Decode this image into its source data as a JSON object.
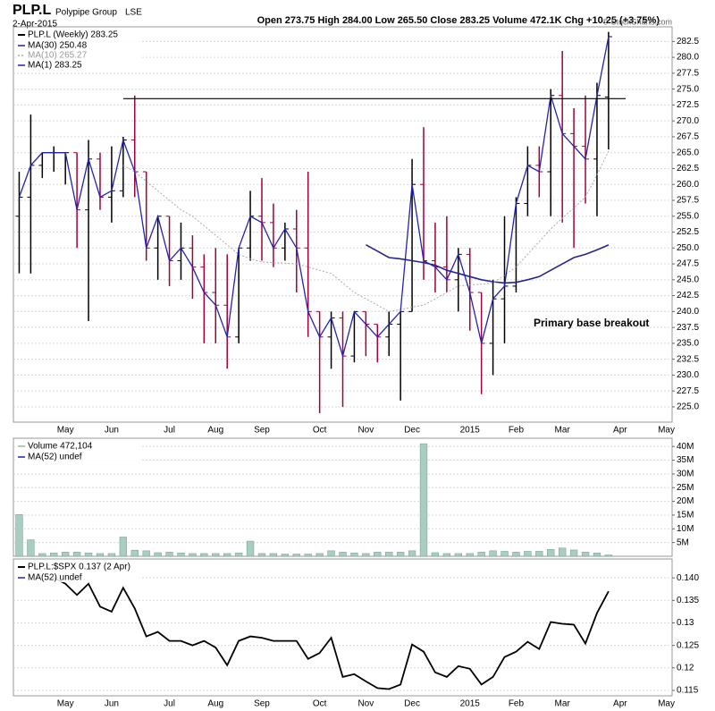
{
  "header": {
    "symbol": "PLP.L",
    "name": "Polypipe Group",
    "exchange": "LSE",
    "date": "2-Apr-2015",
    "quote": "Open 273.75  High 284.00  Low 265.50  Close 283.25  Volume 472.1K  Chg +10.25 (+3.75%)",
    "copyright": "© StockCharts.com"
  },
  "chart_data": [
    {
      "type": "ohlc",
      "title": "PLP.L (Weekly) 283.25",
      "categories": [
        null,
        null,
        null,
        null,
        "May",
        null,
        null,
        null,
        "Jun",
        null,
        null,
        null,
        null,
        "Jul",
        null,
        null,
        null,
        "Aug",
        null,
        null,
        null,
        "Sep",
        null,
        null,
        null,
        null,
        "Oct",
        null,
        null,
        null,
        "Nov",
        null,
        null,
        null,
        "Dec",
        null,
        null,
        null,
        null,
        "2015",
        null,
        null,
        null,
        "Feb",
        null,
        null,
        null,
        "Mar",
        null,
        null,
        null,
        null,
        "Apr",
        null,
        null,
        null,
        "May"
      ],
      "open": [
        255,
        258,
        263,
        265,
        265,
        265,
        256,
        264,
        258,
        259,
        267,
        262,
        250,
        255,
        248,
        250,
        247,
        243,
        241,
        236,
        250,
        255,
        254,
        250,
        253,
        250,
        240,
        236,
        239,
        233,
        240,
        238,
        236,
        238,
        240,
        260,
        248,
        247,
        245,
        249,
        243,
        235,
        242,
        244,
        257,
        263,
        262,
        274,
        268,
        266,
        264,
        273.75,
        null,
        null,
        null,
        null,
        null
      ],
      "high": [
        262,
        271,
        265,
        266,
        265,
        265,
        267,
        265,
        266,
        267.5,
        274,
        262,
        255,
        255,
        254,
        252,
        249,
        250,
        249,
        250,
        259,
        261,
        257,
        254,
        256,
        262,
        240,
        240,
        240,
        240,
        240,
        238,
        240,
        240,
        264,
        269,
        254,
        255,
        250,
        250,
        243,
        245,
        255,
        258,
        266,
        266,
        275,
        281,
        272,
        274,
        276,
        284,
        null,
        null,
        null,
        null,
        null
      ],
      "low": [
        246,
        246,
        261,
        262,
        260,
        250,
        238.5,
        256,
        254,
        258,
        258,
        248,
        245,
        244,
        245,
        242,
        235,
        235,
        231,
        235,
        248,
        248,
        247,
        248,
        243,
        236,
        224,
        231,
        225,
        232,
        233,
        232,
        233,
        226,
        240,
        245,
        243,
        243,
        240,
        237,
        227,
        230,
        235,
        243,
        255,
        258,
        255,
        254,
        250,
        257,
        255,
        265.5,
        null,
        null,
        null,
        null,
        null
      ],
      "close": [
        258,
        263,
        265,
        265,
        265,
        256,
        264,
        258,
        259,
        267,
        262,
        250,
        255,
        248,
        250,
        247,
        243,
        241,
        236,
        250,
        255,
        254,
        250,
        253,
        250,
        240,
        236,
        239,
        233,
        240,
        238,
        236,
        238,
        240,
        260,
        248,
        247,
        245,
        249,
        243,
        235,
        242,
        244,
        257,
        263,
        262,
        274,
        268,
        266,
        264,
        274,
        283.25,
        null,
        null,
        null,
        null,
        null
      ],
      "up_color": "#000000",
      "down_color": "#a0003c",
      "series": [
        {
          "name": "MA(30) 250.48",
          "color": "#25258f",
          "values": [
            null,
            null,
            null,
            null,
            null,
            null,
            null,
            null,
            null,
            null,
            null,
            null,
            null,
            null,
            null,
            null,
            null,
            null,
            null,
            null,
            null,
            null,
            null,
            null,
            null,
            null,
            null,
            null,
            null,
            null,
            250.5,
            249.5,
            248.5,
            248.3,
            248,
            247.7,
            247.3,
            246.5,
            246,
            245.5,
            245,
            244.7,
            244.5,
            244.6,
            245,
            245.5,
            246.5,
            247.5,
            248.5,
            249,
            249.7,
            250.48,
            null,
            null,
            null,
            null,
            null
          ]
        },
        {
          "name": "MA(10) 265.27",
          "color": "#aaaaaa",
          "dashed": true,
          "values": [
            null,
            null,
            null,
            null,
            null,
            null,
            null,
            null,
            null,
            263,
            262,
            260.5,
            259,
            257.5,
            256,
            255,
            253.5,
            252,
            250.5,
            249,
            248.3,
            247.8,
            247.7,
            247.6,
            247.5,
            247,
            246.5,
            246,
            244.5,
            243,
            242,
            241,
            240,
            240.3,
            240.7,
            241,
            242,
            243,
            244,
            244.2,
            244.3,
            244.5,
            245.7,
            247,
            249,
            251,
            253,
            254.7,
            256.3,
            258,
            261.5,
            265.27,
            null,
            null,
            null,
            null,
            null
          ]
        },
        {
          "name": "MA(1) 283.25",
          "color": "#2323b0",
          "of_close": true
        }
      ],
      "resistance": 273.5,
      "annotation": "Primary base breakout",
      "xlim": [
        -0.5,
        56.5
      ],
      "ylim": [
        222.6,
        284.8
      ],
      "yticks": [
        {
          "value": 225,
          "label": "225.0"
        },
        227.5,
        {
          "value": 230,
          "label": "230.0"
        },
        232.5,
        {
          "value": 235,
          "label": "235.0"
        },
        237.5,
        {
          "value": 240,
          "label": "240.0"
        },
        242.5,
        {
          "value": 245,
          "label": "245.0"
        },
        247.5,
        {
          "value": 250,
          "label": "250.0"
        },
        252.5,
        {
          "value": 255,
          "label": "255.0"
        },
        257.5,
        {
          "value": 260,
          "label": "260.0"
        },
        262.5,
        {
          "value": 265,
          "label": "265.0"
        },
        267.5,
        {
          "value": 270,
          "label": "270.0"
        },
        272.5,
        {
          "value": 275,
          "label": "275.0"
        },
        277.5,
        {
          "value": 280,
          "label": "280.0"
        },
        282.5
      ],
      "grid": true
    },
    {
      "type": "bar",
      "title": "Volume 472,104",
      "color": "#a9cdbf",
      "values": [
        15.2,
        6,
        1,
        1.2,
        1.5,
        1.5,
        1.2,
        1,
        1,
        7,
        2.2,
        2,
        1.3,
        1.5,
        1.2,
        1,
        1,
        1,
        1,
        1.2,
        5.5,
        1,
        1,
        0.8,
        0.8,
        0.8,
        1,
        2,
        1.5,
        1.2,
        1,
        1.5,
        1.5,
        1.5,
        2,
        41,
        1.3,
        1,
        1,
        1,
        1.5,
        2,
        1.8,
        1.5,
        1.8,
        1.8,
        2.5,
        3,
        2.3,
        1.5,
        1.2,
        0.47,
        null,
        null,
        null,
        null,
        null
      ],
      "series": [
        {
          "name": "MA(52) undef",
          "color": "#2323b0"
        }
      ],
      "xlim": [
        -0.5,
        56.5
      ],
      "ylim": [
        0,
        43
      ],
      "yticks": [
        {
          "value": 5,
          "label": "5M"
        },
        {
          "value": 10,
          "label": "10M"
        },
        {
          "value": 15,
          "label": "15M"
        },
        {
          "value": 20,
          "label": "20M"
        },
        {
          "value": 25,
          "label": "25M"
        },
        {
          "value": 30,
          "label": "30M"
        },
        {
          "value": 35,
          "label": "35M"
        },
        {
          "value": 40,
          "label": "40M"
        }
      ],
      "grid": true
    },
    {
      "type": "line",
      "title": "PLP.L:$SPX 0.137 (2 Apr)",
      "color": "#000000",
      "values": [
        null,
        null,
        null,
        0.14,
        0.1387,
        0.1362,
        0.1387,
        0.1336,
        0.1325,
        0.1378,
        0.1332,
        0.127,
        0.128,
        0.126,
        0.126,
        0.125,
        0.126,
        0.1245,
        0.1206,
        0.126,
        0.127,
        0.1267,
        0.126,
        0.126,
        0.126,
        0.122,
        0.1233,
        0.1267,
        0.118,
        0.1186,
        0.117,
        0.1155,
        0.1153,
        0.1163,
        0.1252,
        0.1236,
        0.119,
        0.118,
        0.1204,
        0.1198,
        0.1163,
        0.118,
        0.1224,
        0.1236,
        0.1258,
        0.1242,
        0.1302,
        0.1298,
        0.1296,
        0.1254,
        0.1322,
        0.137,
        null,
        null,
        null,
        null,
        null
      ],
      "series": [
        {
          "name": "MA(52) undef",
          "color": "#2323b0"
        }
      ],
      "xlim": [
        -0.5,
        56.5
      ],
      "ylim": [
        0.1138,
        0.1442
      ],
      "yticks": [
        {
          "value": 0.115,
          "label": "0.115"
        },
        0.12,
        0.125,
        0.13,
        0.135,
        {
          "value": 0.14,
          "label": "0.140"
        }
      ],
      "grid": true
    }
  ]
}
